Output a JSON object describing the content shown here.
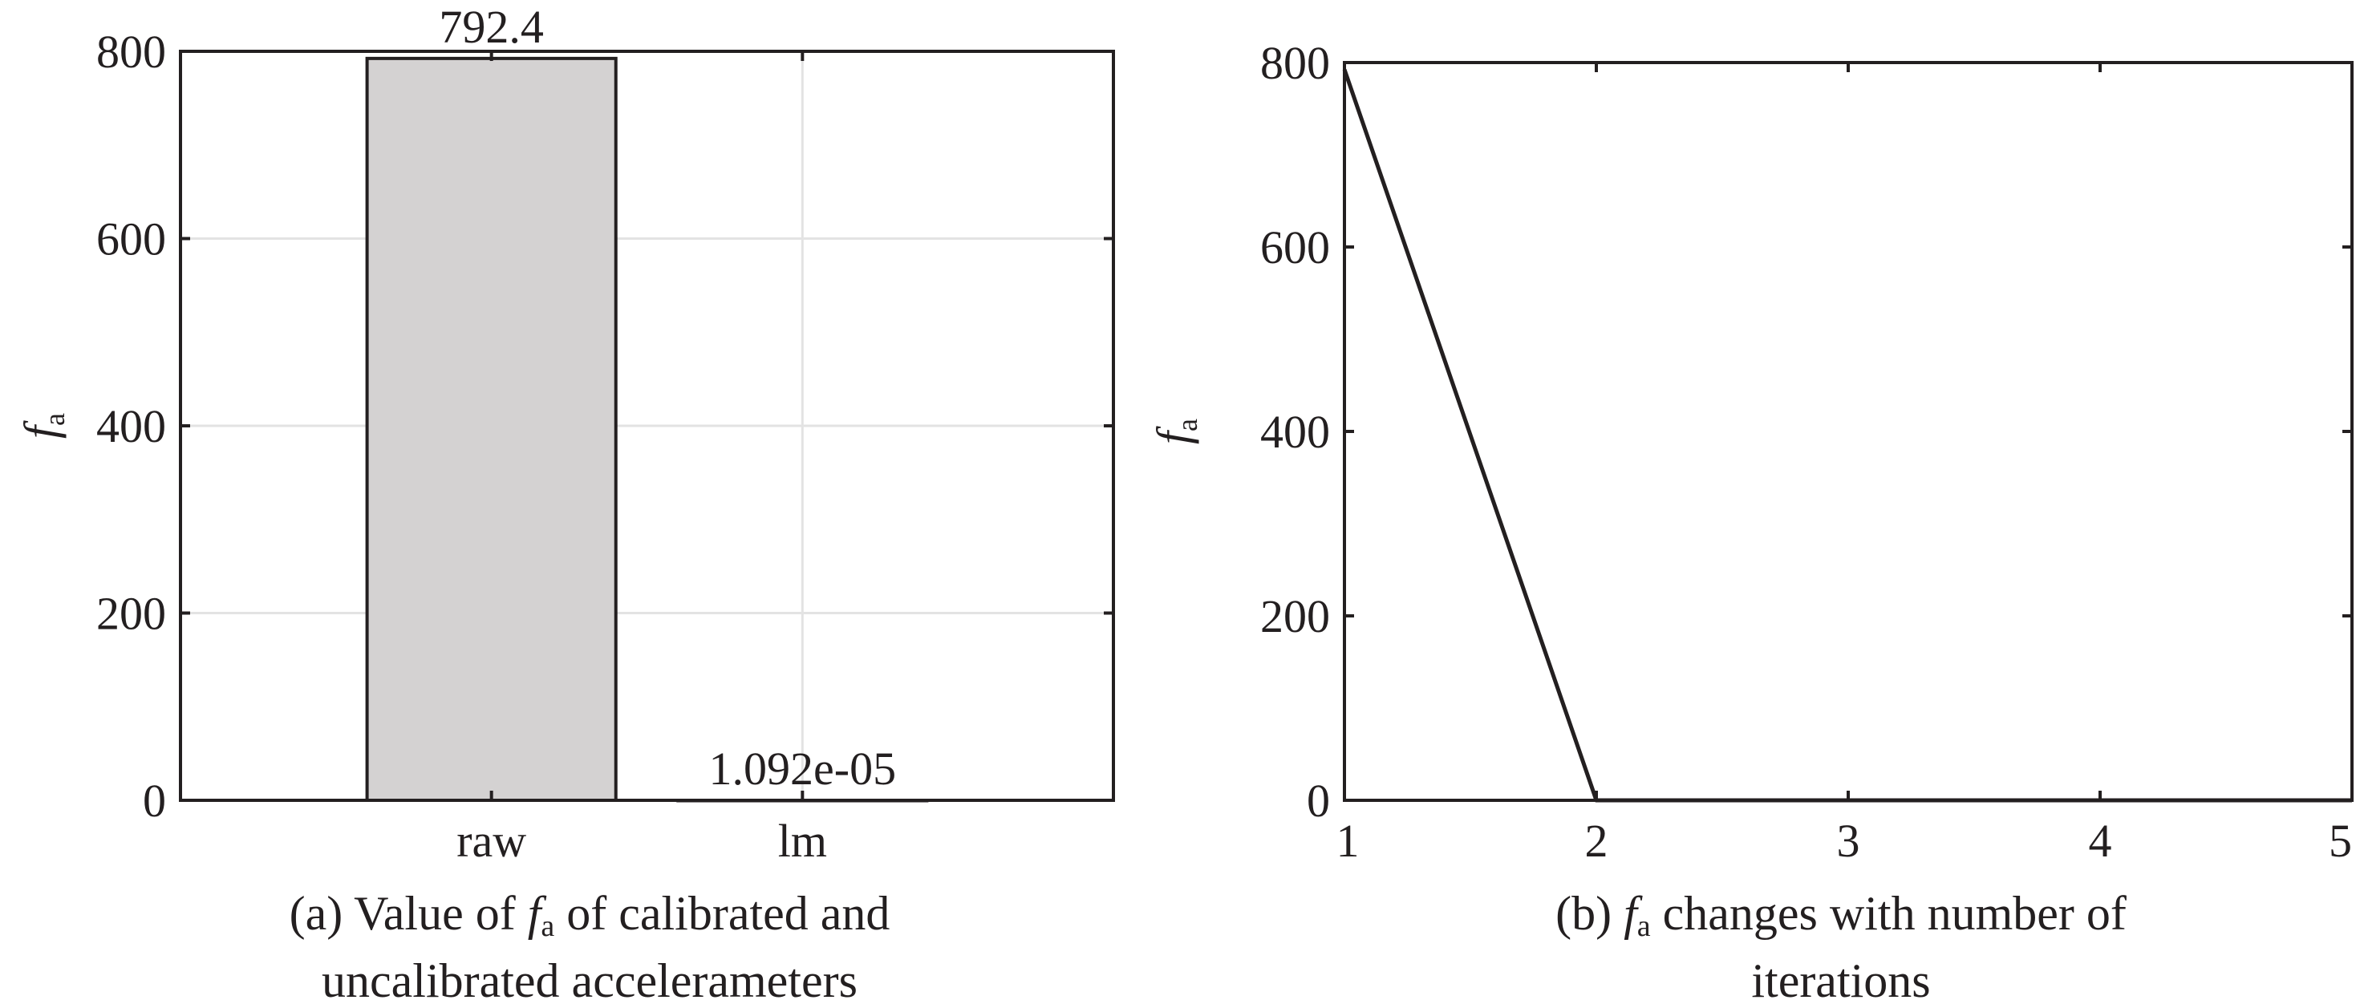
{
  "chart_data": [
    {
      "type": "bar",
      "categories": [
        "raw",
        "lm"
      ],
      "values": [
        792.4,
        1.092e-05
      ],
      "value_labels": [
        "792.4",
        "1.092e-05"
      ],
      "ylabel": {
        "main": "f",
        "sub": "a"
      },
      "ylim": [
        0,
        800
      ],
      "yticks": [
        0,
        200,
        400,
        600,
        800
      ],
      "ytick_labels": [
        "0",
        "200",
        "400",
        "600",
        "800"
      ],
      "grid": true,
      "bar_color": "#d4d2d2",
      "caption": {
        "pre": "(a) Value of ",
        "f": "f",
        "sub": "a",
        "post": " of calibrated and",
        "line2": "uncalibrated accelerameters"
      }
    },
    {
      "type": "line",
      "x": [
        1,
        2,
        3,
        4,
        5
      ],
      "y": [
        792.4,
        1.092e-05,
        1.092e-05,
        1.092e-05,
        1.092e-05
      ],
      "ylabel": {
        "main": "f",
        "sub": "a"
      },
      "xlim": [
        1,
        5
      ],
      "ylim": [
        0,
        800
      ],
      "xticks": [
        1,
        2,
        3,
        4,
        5
      ],
      "xtick_labels": [
        "1",
        "2",
        "3",
        "4",
        "5"
      ],
      "yticks": [
        0,
        200,
        400,
        600,
        800
      ],
      "ytick_labels": [
        "0",
        "200",
        "400",
        "600",
        "800"
      ],
      "grid": false,
      "line_color": "#231f20",
      "caption": {
        "pre": "(b) ",
        "f": "f",
        "sub": "a",
        "post": " changes with number of",
        "line2": "iterations"
      }
    }
  ]
}
